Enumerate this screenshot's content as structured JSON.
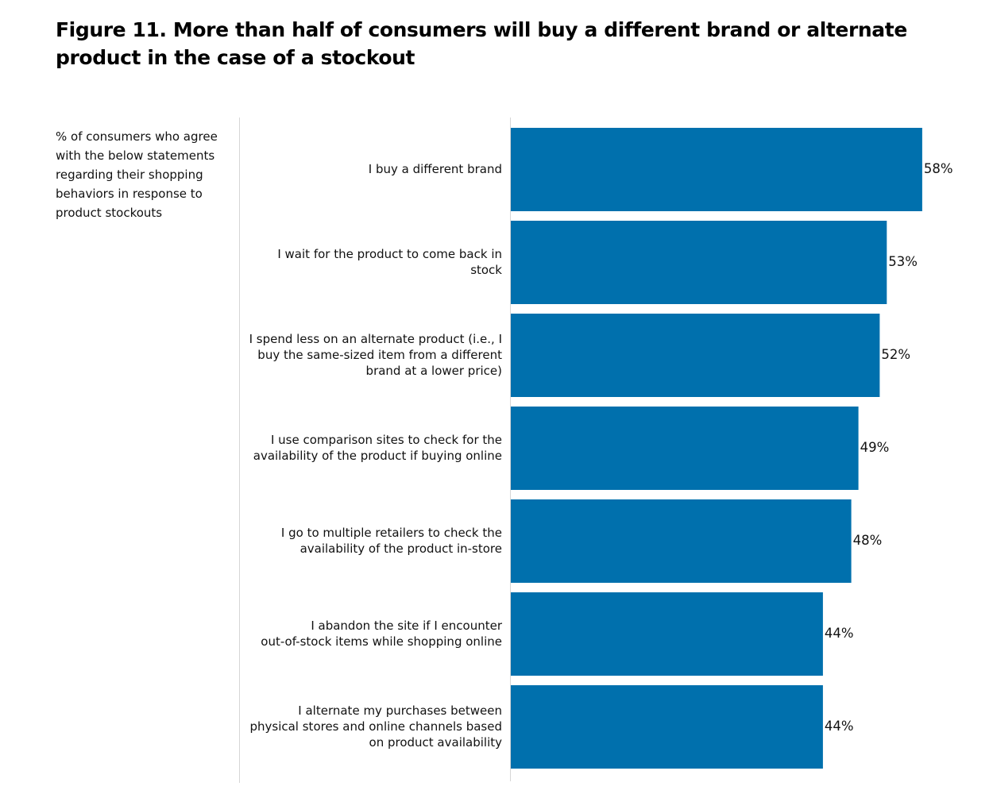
{
  "chart_data": {
    "type": "bar",
    "orientation": "horizontal",
    "title": "Figure 11. More than half of consumers will buy a different brand or alternate product in the case of a stockout",
    "subtitle": "% of consumers who agree with the below statements regarding their shopping behaviors in response to product stockouts",
    "categories": [
      [
        "I buy a different brand"
      ],
      [
        "I wait for the product to come back in",
        "stock"
      ],
      [
        "I spend less on an alternate product (i.e., I",
        "buy the same-sized item from a different",
        "brand at a lower price)"
      ],
      [
        "I use comparison sites to check for the",
        "availability of the product if buying online"
      ],
      [
        "I go to multiple retailers to check the",
        "availability of the product in-store"
      ],
      [
        "I abandon the site if I encounter",
        "out-of-stock items while shopping online"
      ],
      [
        "I alternate my purchases between",
        "physical stores and online channels based",
        "on product availability"
      ]
    ],
    "values": [
      58,
      53,
      52,
      49,
      48,
      44,
      44
    ],
    "value_labels": [
      "58%",
      "53%",
      "52%",
      "49%",
      "48%",
      "44%",
      "44%"
    ],
    "bar_color": "#0070AD",
    "xlim": [
      0,
      100
    ],
    "grid": false,
    "legend": "none",
    "xlabel": "",
    "ylabel": ""
  }
}
